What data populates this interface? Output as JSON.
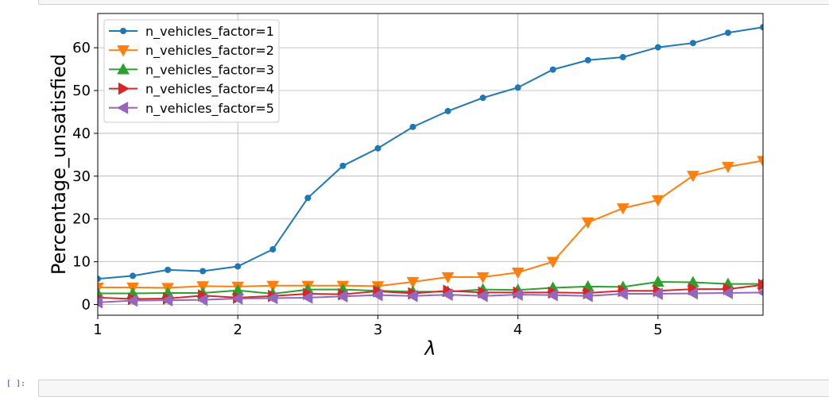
{
  "notebook": {
    "next_prompt": "[ ]:"
  },
  "chart_data": {
    "type": "line",
    "title": "",
    "xlabel": "λ",
    "ylabel": "Percentage_unsatisfied",
    "xlim": [
      1,
      5.75
    ],
    "ylim": [
      -2.5,
      68
    ],
    "xticks": [
      1,
      2,
      3,
      4,
      5
    ],
    "yticks": [
      0,
      10,
      20,
      30,
      40,
      50,
      60
    ],
    "grid": true,
    "legend_position": "upper-left",
    "x": [
      1,
      1.25,
      1.5,
      1.75,
      2,
      2.25,
      2.5,
      2.75,
      3,
      3.25,
      3.5,
      3.75,
      4,
      4.25,
      4.5,
      4.75,
      5,
      5.25,
      5.5,
      5.75
    ],
    "series": [
      {
        "name": "n_vehicles_factor=1",
        "color": "#1f77b4",
        "marker": "circle",
        "values": [
          6.0,
          6.7,
          8.1,
          7.8,
          8.9,
          12.9,
          24.9,
          32.4,
          36.5,
          41.5,
          45.2,
          48.3,
          50.7,
          54.9,
          57.1,
          57.8,
          60.1,
          61.1,
          63.5,
          64.8
        ]
      },
      {
        "name": "n_vehicles_factor=2",
        "color": "#ff7f0e",
        "marker": "triangle-down",
        "values": [
          4.0,
          4.0,
          3.9,
          4.3,
          4.2,
          4.4,
          4.4,
          4.4,
          4.3,
          5.3,
          6.4,
          6.4,
          7.5,
          10.0,
          19.2,
          22.5,
          24.4,
          30.1,
          32.2,
          33.6
        ]
      },
      {
        "name": "n_vehicles_factor=3",
        "color": "#2ca02c",
        "marker": "triangle-up",
        "values": [
          2.6,
          2.6,
          2.7,
          2.7,
          3.3,
          2.5,
          3.5,
          3.5,
          3.2,
          3.0,
          3.0,
          3.5,
          3.4,
          3.9,
          4.2,
          4.1,
          5.3,
          5.2,
          4.8,
          4.8
        ]
      },
      {
        "name": "n_vehicles_factor=4",
        "color": "#d62728",
        "marker": "triangle-right",
        "values": [
          1.6,
          1.3,
          1.4,
          2.1,
          1.6,
          2.0,
          2.5,
          2.4,
          3.1,
          2.6,
          3.2,
          2.8,
          2.8,
          2.8,
          2.7,
          3.2,
          3.2,
          3.6,
          3.6,
          4.6
        ]
      },
      {
        "name": "n_vehicles_factor=5",
        "color": "#9467bd",
        "marker": "triangle-left",
        "values": [
          0.5,
          0.9,
          1.0,
          1.1,
          1.4,
          1.5,
          1.6,
          1.9,
          2.2,
          2.0,
          2.3,
          2.0,
          2.3,
          2.2,
          2.0,
          2.5,
          2.5,
          2.6,
          2.7,
          2.8
        ]
      }
    ]
  }
}
